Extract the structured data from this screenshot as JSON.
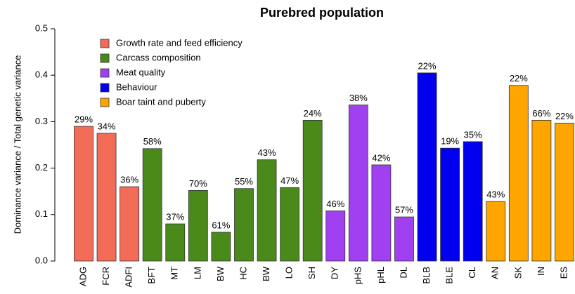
{
  "chart_data": {
    "type": "bar",
    "title": "Purebred population",
    "y_label": "Dominance variance / Total genetic variance",
    "categories": [
      "ADG",
      "FCR",
      "ADFI",
      "BFT",
      "MT",
      "LM",
      "BW",
      "HC",
      "BW",
      "LO",
      "SH",
      "DY",
      "pHS",
      "pHL",
      "DL",
      "BLB",
      "BLE",
      "CL",
      "AN",
      "SK",
      "IN",
      "ES"
    ],
    "ylim": [
      0,
      0.5
    ],
    "yticks": [
      {
        "value": 0,
        "label": "0.0"
      },
      0.1,
      0.2,
      0.3,
      0.4,
      0.5
    ],
    "legend": "top-left",
    "series": [
      {
        "name": "Growth rate and feed efficiency",
        "color": "#f26c57",
        "values": [
          0.29,
          0.275,
          0.16,
          null,
          null,
          null,
          null,
          null,
          null,
          null,
          null,
          null,
          null,
          null,
          null,
          null,
          null,
          null,
          null,
          null,
          null,
          null
        ],
        "annotations": [
          "29%",
          "34%",
          "36%",
          null,
          null,
          null,
          null,
          null,
          null,
          null,
          null,
          null,
          null,
          null,
          null,
          null,
          null,
          null,
          null,
          null,
          null,
          null
        ]
      },
      {
        "name": "Carcass composition",
        "color": "#4a8a1a",
        "values": [
          null,
          null,
          null,
          0.242,
          0.08,
          0.152,
          0.062,
          0.156,
          0.218,
          0.158,
          0.303,
          null,
          null,
          null,
          null,
          null,
          null,
          null,
          null,
          null,
          null,
          null
        ],
        "annotations": [
          null,
          null,
          null,
          "58%",
          "37%",
          "70%",
          "61%",
          "55%",
          "43%",
          "47%",
          "24%",
          null,
          null,
          null,
          null,
          null,
          null,
          null,
          null,
          null,
          null,
          null
        ]
      },
      {
        "name": "Meat quality",
        "color": "#a040f0",
        "values": [
          null,
          null,
          null,
          null,
          null,
          null,
          null,
          null,
          null,
          null,
          null,
          0.108,
          0.336,
          0.207,
          0.095,
          null,
          null,
          null,
          null,
          null,
          null,
          null
        ],
        "annotations": [
          null,
          null,
          null,
          null,
          null,
          null,
          null,
          null,
          null,
          null,
          null,
          "46%",
          "38%",
          "42%",
          "57%",
          null,
          null,
          null,
          null,
          null,
          null,
          null
        ]
      },
      {
        "name": "Behaviour",
        "color": "#0000ee",
        "values": [
          null,
          null,
          null,
          null,
          null,
          null,
          null,
          null,
          null,
          null,
          null,
          null,
          null,
          null,
          null,
          0.405,
          0.243,
          0.257,
          null,
          null,
          null,
          null
        ],
        "annotations": [
          null,
          null,
          null,
          null,
          null,
          null,
          null,
          null,
          null,
          null,
          null,
          null,
          null,
          null,
          null,
          "22%",
          "19%",
          "35%",
          null,
          null,
          null,
          null
        ]
      },
      {
        "name": "Boar taint and puberty",
        "color": "#ffa500",
        "values": [
          null,
          null,
          null,
          null,
          null,
          null,
          null,
          null,
          null,
          null,
          null,
          null,
          null,
          null,
          null,
          null,
          null,
          null,
          0.128,
          0.378,
          0.303,
          0.297
        ],
        "annotations": [
          null,
          null,
          null,
          null,
          null,
          null,
          null,
          null,
          null,
          null,
          null,
          null,
          null,
          null,
          null,
          null,
          null,
          null,
          "43%",
          "22%",
          "66%",
          "22%"
        ]
      }
    ]
  }
}
